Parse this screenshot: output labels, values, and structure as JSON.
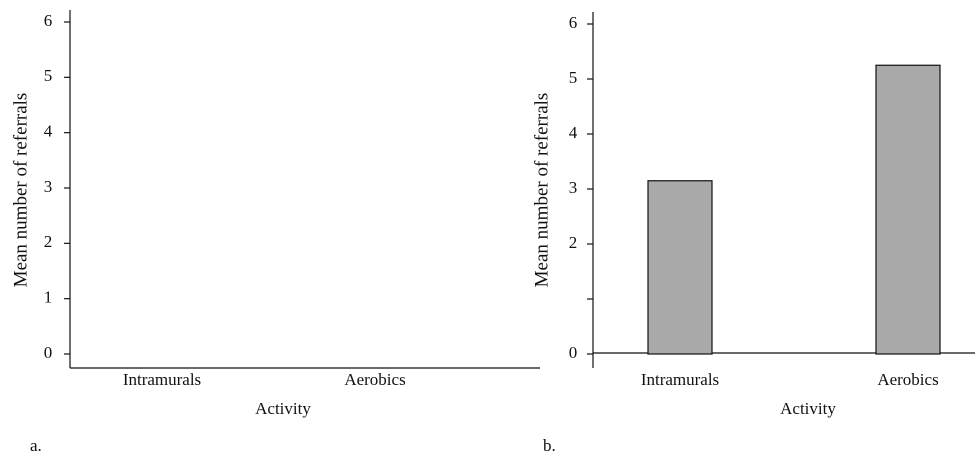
{
  "chart_data": [
    {
      "type": "bar",
      "label": "a.",
      "xlabel": "Activity",
      "ylabel": "Mean number of referrals",
      "categories": [
        "Intramurals",
        "Aerobics"
      ],
      "values": [
        null,
        null
      ],
      "color": "#a9a9a9",
      "ylim": [
        0,
        6
      ],
      "yticks": [
        0,
        1,
        2,
        3,
        4,
        5,
        6
      ]
    },
    {
      "type": "bar",
      "label": "b.",
      "xlabel": "Activity",
      "ylabel": "Mean number of referrals",
      "categories": [
        "Intramurals",
        "Aerobics"
      ],
      "values": [
        3.15,
        5.25
      ],
      "color": "#a9a9a9",
      "ylim": [
        0,
        6
      ],
      "yticks": [
        0,
        {
          "value": 1,
          "label": null
        },
        2,
        3,
        4,
        5,
        6
      ]
    }
  ]
}
